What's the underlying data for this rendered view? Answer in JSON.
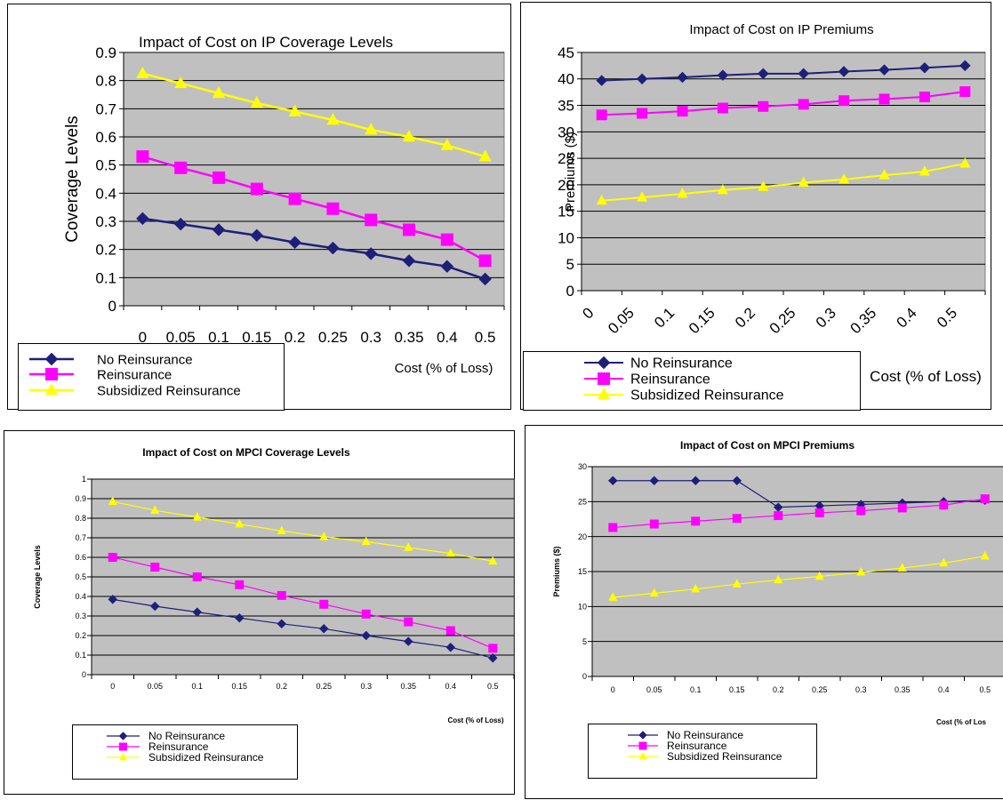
{
  "chart_data": [
    {
      "type": "line",
      "title": "Impact of Cost on IP Coverage Levels",
      "xlabel": "Cost (% of Loss)",
      "ylabel": "Coverage Levels",
      "categories": [
        "0",
        "0.05",
        "0.1",
        "0.15",
        "0.2",
        "0.25",
        "0.3",
        "0.35",
        "0.4",
        "0.5"
      ],
      "y_ticks": [
        "0",
        "0.1",
        "0.2",
        "0.3",
        "0.4",
        "0.5",
        "0.6",
        "0.7",
        "0.8",
        "0.9"
      ],
      "ylim": [
        0,
        0.9
      ],
      "grid": true,
      "legend_position": "bottom-left",
      "series": [
        {
          "name": "No Reinsurance",
          "color": "#1f1f7a",
          "marker": "diamond",
          "values": [
            0.31,
            0.29,
            0.27,
            0.25,
            0.225,
            0.205,
            0.185,
            0.16,
            0.14,
            0.095
          ]
        },
        {
          "name": "Reinsurance",
          "color": "#ff00ff",
          "marker": "square",
          "values": [
            0.53,
            0.49,
            0.455,
            0.415,
            0.38,
            0.345,
            0.305,
            0.27,
            0.235,
            0.16
          ]
        },
        {
          "name": "Subsidized Reinsurance",
          "color": "#ffff00",
          "marker": "triangle",
          "values": [
            0.825,
            0.79,
            0.755,
            0.72,
            0.69,
            0.66,
            0.625,
            0.6,
            0.57,
            0.53
          ]
        }
      ]
    },
    {
      "type": "line",
      "title": "Impact of Cost on IP Premiums",
      "xlabel": "Cost (% of Loss)",
      "ylabel": "Premiums ($)",
      "categories": [
        "0",
        "0.05",
        "0.1",
        "0.15",
        "0.2",
        "0.25",
        "0.3",
        "0.35",
        "0.4",
        "0.5"
      ],
      "y_ticks": [
        "0",
        "5",
        "10",
        "15",
        "20",
        "25",
        "30",
        "35",
        "40",
        "45"
      ],
      "ylim": [
        0,
        45
      ],
      "grid": true,
      "legend_position": "bottom-left",
      "series": [
        {
          "name": "No Reinsurance",
          "color": "#1f1f7a",
          "marker": "diamond",
          "values": [
            39.7,
            40.0,
            40.3,
            40.7,
            41.0,
            41.0,
            41.4,
            41.7,
            42.1,
            42.5
          ]
        },
        {
          "name": "Reinsurance",
          "color": "#ff00ff",
          "marker": "square",
          "values": [
            33.2,
            33.5,
            33.9,
            34.5,
            34.8,
            35.2,
            35.9,
            36.2,
            36.6,
            37.6
          ]
        },
        {
          "name": "Subsidized Reinsurance",
          "color": "#ffff00",
          "marker": "triangle",
          "values": [
            17.0,
            17.6,
            18.3,
            19.0,
            19.6,
            20.4,
            21.0,
            21.8,
            22.5,
            24.0
          ]
        }
      ]
    },
    {
      "type": "line",
      "title": "Impact of Cost on MPCI Coverage Levels",
      "xlabel": "Cost (% of Loss)",
      "ylabel": "Coverage Levels",
      "categories": [
        "0",
        "0.05",
        "0.1",
        "0.15",
        "0.2",
        "0.25",
        "0.3",
        "0.35",
        "0.4",
        "0.5"
      ],
      "y_ticks": [
        "0",
        "0.1",
        "0.2",
        "0.3",
        "0.4",
        "0.5",
        "0.6",
        "0.7",
        "0.8",
        "0.9",
        "1"
      ],
      "ylim": [
        0,
        1
      ],
      "grid": true,
      "legend_position": "bottom-left",
      "series": [
        {
          "name": "No Reinsurance",
          "color": "#1f1f7a",
          "marker": "diamond",
          "values": [
            0.385,
            0.35,
            0.32,
            0.29,
            0.26,
            0.235,
            0.2,
            0.17,
            0.14,
            0.085
          ]
        },
        {
          "name": "Reinsurance",
          "color": "#ff00ff",
          "marker": "square",
          "values": [
            0.6,
            0.55,
            0.5,
            0.46,
            0.405,
            0.36,
            0.31,
            0.27,
            0.225,
            0.135
          ]
        },
        {
          "name": "Subsidized Reinsurance",
          "color": "#ffff00",
          "marker": "triangle",
          "values": [
            0.885,
            0.84,
            0.805,
            0.77,
            0.735,
            0.705,
            0.68,
            0.65,
            0.62,
            0.58
          ]
        }
      ]
    },
    {
      "type": "line",
      "title": "Impact of Cost on MPCI Premiums",
      "xlabel": "Cost (% of Los",
      "ylabel": "Premiums ($)",
      "categories": [
        "0",
        "0.05",
        "0.1",
        "0.15",
        "0.2",
        "0.25",
        "0.3",
        "0.35",
        "0.4",
        "0.5"
      ],
      "y_ticks": [
        "0",
        "5",
        "10",
        "15",
        "20",
        "25",
        "30"
      ],
      "ylim": [
        0,
        30
      ],
      "grid": true,
      "legend_position": "bottom-left",
      "series": [
        {
          "name": "No Reinsurance",
          "color": "#1f1f7a",
          "marker": "diamond",
          "values": [
            28.0,
            28.0,
            28.0,
            28.0,
            24.2,
            24.4,
            24.6,
            24.8,
            25.0,
            25.2
          ]
        },
        {
          "name": "Reinsurance",
          "color": "#ff00ff",
          "marker": "square",
          "values": [
            21.3,
            21.8,
            22.2,
            22.6,
            23.0,
            23.4,
            23.7,
            24.1,
            24.5,
            25.4
          ]
        },
        {
          "name": "Subsidized Reinsurance",
          "color": "#ffff00",
          "marker": "triangle",
          "values": [
            11.3,
            11.9,
            12.5,
            13.2,
            13.8,
            14.3,
            14.9,
            15.5,
            16.2,
            17.2
          ]
        }
      ]
    }
  ]
}
